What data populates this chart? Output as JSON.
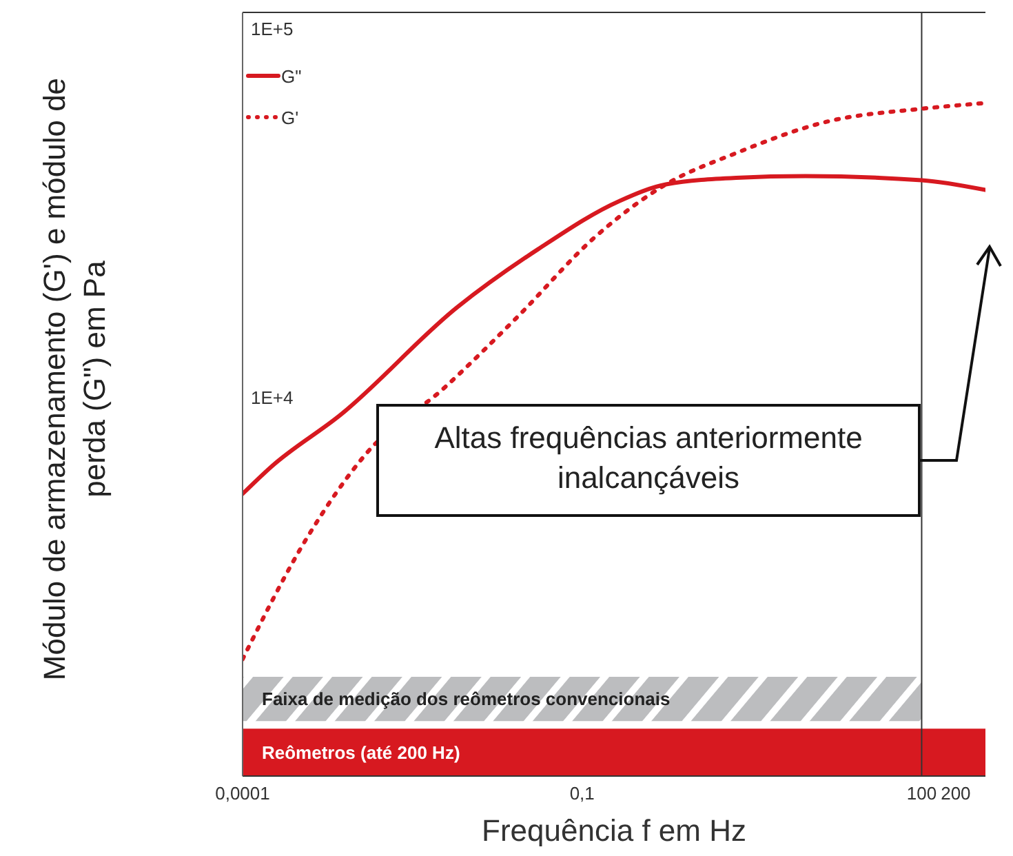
{
  "chart_data": {
    "type": "line",
    "xlabel": "Frequência f em Hz",
    "ylabel": "Módulo de armazenamento (G') e módulo de perda (G\")  em Pa",
    "log": "xy",
    "grid": false,
    "legend": "top left",
    "xlim": [
      0.0001,
      366
    ],
    "ylim": [
      940,
      111000
    ],
    "xticks": [
      {
        "value": 0.0001,
        "label": "0,0001"
      },
      {
        "value": 0.1,
        "label": "0,1"
      },
      100,
      200
    ],
    "yticks": [
      {
        "value": 10000,
        "label": "1E+4"
      },
      {
        "value": 100000,
        "label": "1E+5"
      }
    ],
    "series": [
      {
        "name": "G\"",
        "color": "#d71920",
        "line_style": "solid",
        "x": [
          0.0001,
          0.00018,
          0.00074,
          0.0079,
          0.041,
          0.215,
          0.55,
          2.3,
          9.4,
          100,
          366
        ],
        "values": [
          5480,
          6500,
          9000,
          17600,
          25300,
          34200,
          37900,
          39500,
          39900,
          38900,
          36600
        ]
      },
      {
        "name": "G'",
        "color": "#d71920",
        "line_style": "dotted",
        "x": [
          0.0001,
          0.00037,
          0.0012,
          0.0062,
          0.026,
          0.134,
          0.55,
          2.3,
          15,
          100,
          366
        ],
        "values": [
          1950,
          4160,
          6970,
          10700,
          16400,
          27500,
          37900,
          46100,
          56200,
          60800,
          63000
        ]
      }
    ],
    "ref_lines": [
      {
        "axis": "x",
        "value": 100,
        "color": "#333333"
      }
    ],
    "bands": [
      {
        "axis": "x",
        "from": 0.0001,
        "to": 100,
        "label": "Faixa de medição dos reômetros convencionais",
        "color": "#bcbdbf"
      },
      {
        "axis": "x",
        "from": 0.0001,
        "to": 366,
        "label": "Reômetros (até 200 Hz)",
        "color": "#d71920"
      }
    ],
    "annotations": [
      "Altas frequências anteriormente inalcançáveis"
    ]
  }
}
